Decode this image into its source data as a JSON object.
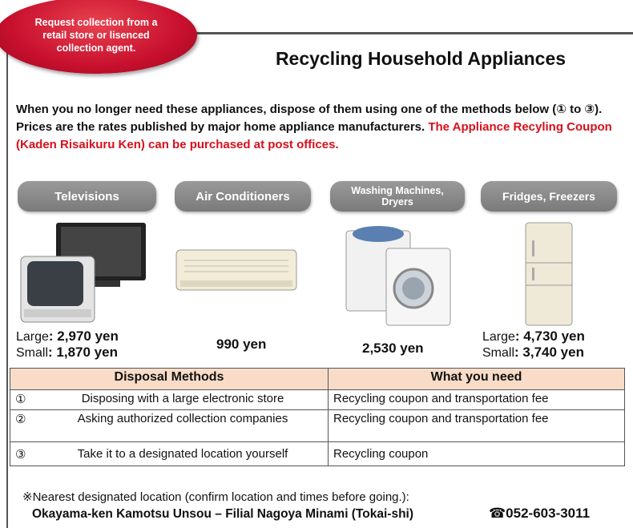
{
  "badge": "Request collection from a retail store or lisenced collection agent.",
  "header": {
    "title": "Recycling Household Appliances"
  },
  "intro": {
    "text": "When you no longer need these appliances, dispose of them using one of the methods below (① to ③). Prices are the rates published by major home appliance manufacturers.",
    "highlight": "The Appliance Recyling Coupon (Kaden Risaikuru Ken) can be purchased at post offices."
  },
  "appliances": [
    {
      "name": "Televisions",
      "prices": [
        {
          "size": "Large",
          "price": ": 2,970 yen"
        },
        {
          "size": "Small",
          "price": ": 1,870 yen"
        }
      ]
    },
    {
      "name": "Air Conditioners",
      "price": "990 yen"
    },
    {
      "name": "Washing Machines, Dryers",
      "price": "2,530 yen"
    },
    {
      "name": "Fridges, Freezers",
      "prices": [
        {
          "size": "Large",
          "price": ": 4,730 yen"
        },
        {
          "size": "Small",
          "price": ": 3,740 yen"
        }
      ]
    }
  ],
  "table": {
    "header": [
      "Disposal Methods",
      "What you need"
    ],
    "rows": [
      [
        "①",
        "Disposing with a large electronic store",
        "Recycling coupon and transportation fee"
      ],
      [
        "②",
        "Asking authorized collection companies",
        "Recycling coupon and transportation fee"
      ],
      [
        "③",
        "Take it to a designated location yourself",
        "Recycling coupon"
      ]
    ]
  },
  "note": "※Nearest designated location (confirm location and times before going.):",
  "contact": {
    "location": "Okayama-ken Kamotsu Unsou – Filial Nagoya Minami (Tokai-shi)",
    "phone": "☎052-603-3011"
  }
}
